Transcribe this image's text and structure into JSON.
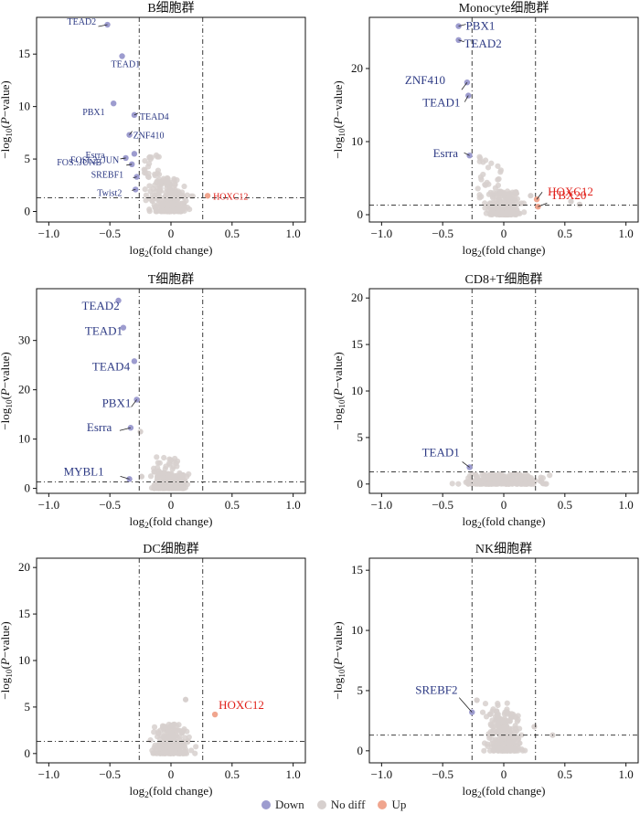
{
  "colors": {
    "down": "#9d9ccf",
    "nodiff": "#d7d0ce",
    "up": "#f0a58e",
    "down_label": "#2d3a84",
    "up_label": "#e0201a"
  },
  "legend": {
    "down": "Down",
    "nodiff": "No diff",
    "up": "Up"
  },
  "chart_data": [
    {
      "type": "scatter",
      "title": "B细胞群",
      "xlabel": "log2(fold change)",
      "ylabel": "−log10(P−value)",
      "xlim": [
        -1.1,
        1.1
      ],
      "ylim": [
        -1,
        18.5
      ],
      "xticks": [
        -1.0,
        -0.5,
        0,
        0.5,
        1.0
      ],
      "yticks": [
        0,
        5,
        10,
        15
      ],
      "x_thresholds": [
        -0.26,
        0.26
      ],
      "y_threshold": 1.3,
      "label_size": "small",
      "points": [
        {
          "label": "TEAD2",
          "x": -0.52,
          "y": 17.8,
          "group": "down"
        },
        {
          "label": "TEAD1",
          "x": -0.4,
          "y": 14.8,
          "group": "down"
        },
        {
          "label": "TEAD4",
          "x": -0.3,
          "y": 9.2,
          "group": "down"
        },
        {
          "label": "PBX1",
          "x": -0.47,
          "y": 10.3,
          "group": "down"
        },
        {
          "label": "ZNF410",
          "x": -0.34,
          "y": 7.3,
          "group": "down"
        },
        {
          "label": "FOSL2::JUN",
          "x": -0.3,
          "y": 5.5,
          "group": "down"
        },
        {
          "label": "Esrra",
          "x": -0.37,
          "y": 5.1,
          "group": "down"
        },
        {
          "label": "FOS::JUNB",
          "x": -0.32,
          "y": 4.5,
          "group": "down"
        },
        {
          "label": "SREBF1",
          "x": -0.28,
          "y": 3.3,
          "group": "down"
        },
        {
          "label": "Twist2",
          "x": -0.29,
          "y": 2.1,
          "group": "down"
        },
        {
          "label": "HOXC12",
          "x": 0.3,
          "y": 1.5,
          "group": "up"
        }
      ]
    },
    {
      "type": "scatter",
      "title": "Monocyte细胞群",
      "xlabel": "log2(fold change)",
      "ylabel": "−log10(P−value)",
      "xlim": [
        -1.1,
        1.1
      ],
      "ylim": [
        -1,
        27
      ],
      "xticks": [
        -1.0,
        -0.5,
        0,
        0.5,
        1.0
      ],
      "yticks": [
        0,
        10,
        20
      ],
      "x_thresholds": [
        -0.26,
        0.26
      ],
      "y_threshold": 1.3,
      "label_size": "large",
      "points": [
        {
          "label": "PBX1",
          "x": -0.37,
          "y": 25.8,
          "group": "down"
        },
        {
          "label": "TEAD2",
          "x": -0.37,
          "y": 23.9,
          "group": "down"
        },
        {
          "label": "ZNF410",
          "x": -0.3,
          "y": 18.1,
          "group": "down"
        },
        {
          "label": "TEAD1",
          "x": -0.29,
          "y": 16.3,
          "group": "down"
        },
        {
          "label": "Esrra",
          "x": -0.28,
          "y": 8.1,
          "group": "down"
        },
        {
          "label": "HOXC12",
          "x": 0.27,
          "y": 2.1,
          "group": "up"
        },
        {
          "label": "TBX20",
          "x": 0.28,
          "y": 1.1,
          "group": "up"
        }
      ]
    },
    {
      "type": "scatter",
      "title": "T细胞群",
      "xlabel": "log2(fold change)",
      "ylabel": "−log10(P−value)",
      "xlim": [
        -1.1,
        1.1
      ],
      "ylim": [
        -1,
        40.5
      ],
      "xticks": [
        -1.0,
        -0.5,
        0,
        0.5,
        1.0
      ],
      "yticks": [
        0,
        10,
        20,
        30
      ],
      "x_thresholds": [
        -0.26,
        0.26
      ],
      "y_threshold": 1.3,
      "label_size": "large",
      "points": [
        {
          "label": "TEAD2",
          "x": -0.43,
          "y": 38.1,
          "group": "down"
        },
        {
          "label": "TEAD1",
          "x": -0.39,
          "y": 32.6,
          "group": "down"
        },
        {
          "label": "TEAD4",
          "x": -0.3,
          "y": 25.8,
          "group": "down"
        },
        {
          "label": "PBX1",
          "x": -0.28,
          "y": 18.0,
          "group": "down"
        },
        {
          "label": "Esrra",
          "x": -0.33,
          "y": 12.3,
          "group": "down"
        },
        {
          "label": "MYBL1",
          "x": -0.34,
          "y": 1.9,
          "group": "down"
        }
      ]
    },
    {
      "type": "scatter",
      "title": "CD8+T细胞群",
      "xlabel": "log2(fold change)",
      "ylabel": "−log10(P−value)",
      "xlim": [
        -1.1,
        1.1
      ],
      "ylim": [
        -1,
        21
      ],
      "xticks": [
        -1.0,
        -0.5,
        0,
        0.5,
        1.0
      ],
      "yticks": [
        0,
        5,
        10,
        15,
        20
      ],
      "x_thresholds": [
        -0.26,
        0.26
      ],
      "y_threshold": 1.3,
      "label_size": "large",
      "points": [
        {
          "label": "TEAD1",
          "x": -0.28,
          "y": 1.8,
          "group": "down"
        }
      ]
    },
    {
      "type": "scatter",
      "title": "DC细胞群",
      "xlabel": "log2(fold change)",
      "ylabel": "−log10(P−value)",
      "xlim": [
        -1.1,
        1.1
      ],
      "ylim": [
        -1,
        21
      ],
      "xticks": [
        -1.0,
        -0.5,
        0,
        0.5,
        1.0
      ],
      "yticks": [
        0,
        5,
        10,
        15,
        20
      ],
      "x_thresholds": [
        -0.26,
        0.26
      ],
      "y_threshold": 1.3,
      "label_size": "large",
      "points": [
        {
          "label": "HOXC12",
          "x": 0.36,
          "y": 4.2,
          "group": "up"
        }
      ]
    },
    {
      "type": "scatter",
      "title": "NK细胞群",
      "xlabel": "log2(fold change)",
      "ylabel": "−log10(P−value)",
      "xlim": [
        -1.1,
        1.1
      ],
      "ylim": [
        -1,
        16
      ],
      "xticks": [
        -1.0,
        -0.5,
        0,
        0.5,
        1.0
      ],
      "yticks": [
        0,
        5,
        10,
        15
      ],
      "x_thresholds": [
        -0.26,
        0.26
      ],
      "y_threshold": 1.3,
      "label_size": "large",
      "points": [
        {
          "label": "SREBF2",
          "x": -0.26,
          "y": 3.2,
          "group": "down"
        }
      ]
    }
  ]
}
